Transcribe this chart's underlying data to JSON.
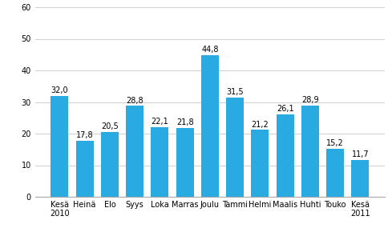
{
  "categories": [
    "Kesä",
    "Heinä",
    "Elo",
    "Syys",
    "Loka",
    "Marras",
    "Joulu",
    "Tammi",
    "Helmi",
    "Maalis",
    "Huhti",
    "Touko",
    "Kesä"
  ],
  "year_labels": [
    [
      "Kesä",
      "2010"
    ],
    [
      "Heinä",
      ""
    ],
    [
      "Elo",
      ""
    ],
    [
      "Syys",
      ""
    ],
    [
      "Loka",
      ""
    ],
    [
      "Marras",
      ""
    ],
    [
      "Joulu",
      ""
    ],
    [
      "Tammi",
      ""
    ],
    [
      "Helmi",
      ""
    ],
    [
      "Maalis",
      ""
    ],
    [
      "Huhti",
      ""
    ],
    [
      "Touko",
      ""
    ],
    [
      "Kesä",
      "2011"
    ]
  ],
  "values": [
    32.0,
    17.8,
    20.5,
    28.8,
    22.1,
    21.8,
    44.8,
    31.5,
    21.2,
    26.1,
    28.9,
    15.2,
    11.7
  ],
  "bar_color": "#29ABE2",
  "ylim": [
    0,
    60
  ],
  "yticks": [
    0,
    10,
    20,
    30,
    40,
    50,
    60
  ],
  "value_labels": [
    "32,0",
    "17,8",
    "20,5",
    "28,8",
    "22,1",
    "21,8",
    "44,8",
    "31,5",
    "21,2",
    "26,1",
    "28,9",
    "15,2",
    "11,7"
  ],
  "grid_color": "#c8c8c8",
  "background_color": "#ffffff",
  "label_fontsize": 7.0,
  "value_fontsize": 7.0
}
